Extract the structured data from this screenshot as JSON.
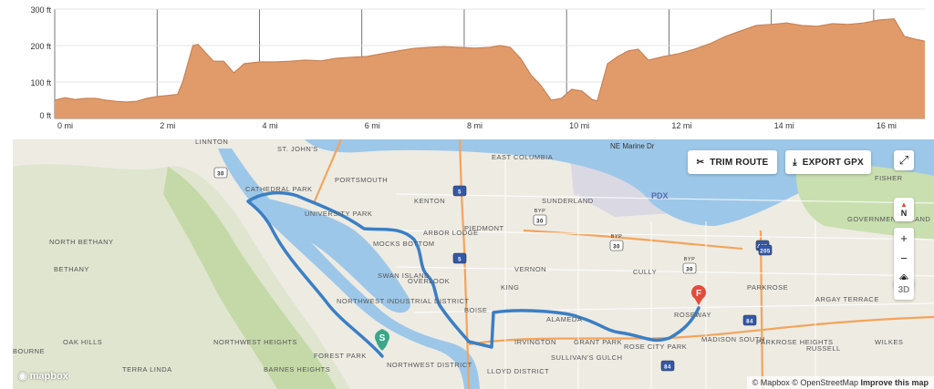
{
  "elevation": {
    "y_ticks": [
      "300 ft",
      "200 ft",
      "100 ft",
      "0 ft"
    ],
    "x_ticks": [
      "0 mi",
      "2 mi",
      "4 mi",
      "6 mi",
      "8 mi",
      "10 mi",
      "12 mi",
      "14 mi",
      "16 mi"
    ],
    "fill_color": "#e19b6b",
    "line_color": "#c98254"
  },
  "chart_data": {
    "type": "area",
    "xlabel": "",
    "ylabel": "",
    "xlim": [
      0,
      17
    ],
    "ylim": [
      0,
      300
    ],
    "x": [
      0,
      0.2,
      0.4,
      0.6,
      0.8,
      1.0,
      1.2,
      1.4,
      1.6,
      1.8,
      2.0,
      2.2,
      2.4,
      2.5,
      2.7,
      2.8,
      3.1,
      3.3,
      3.5,
      3.7,
      4.0,
      4.3,
      4.6,
      4.9,
      5.2,
      5.5,
      5.8,
      6.1,
      6.4,
      6.7,
      7.0,
      7.3,
      7.6,
      7.9,
      8.2,
      8.5,
      8.7,
      8.9,
      9.1,
      9.3,
      9.5,
      9.7,
      9.9,
      10.1,
      10.3,
      10.5,
      10.6,
      10.8,
      11.0,
      11.2,
      11.4,
      11.6,
      11.9,
      12.2,
      12.5,
      12.8,
      13.1,
      13.4,
      13.7,
      14.0,
      14.3,
      14.6,
      14.9,
      15.2,
      15.5,
      15.8,
      16.1,
      16.4,
      16.6,
      16.8,
      17.0
    ],
    "y": [
      50,
      57,
      52,
      55,
      55,
      50,
      47,
      45,
      47,
      55,
      60,
      63,
      66,
      100,
      200,
      203,
      157,
      157,
      125,
      150,
      155,
      155,
      157,
      160,
      158,
      165,
      168,
      170,
      178,
      185,
      192,
      195,
      197,
      195,
      193,
      195,
      200,
      195,
      165,
      120,
      90,
      50,
      55,
      80,
      75,
      52,
      48,
      150,
      170,
      185,
      190,
      160,
      170,
      178,
      190,
      205,
      225,
      240,
      255,
      258,
      262,
      255,
      253,
      260,
      258,
      262,
      270,
      273,
      225,
      218,
      212
    ],
    "series": [
      {
        "values": [
          50,
          57,
          52,
          55,
          55,
          50,
          47,
          45,
          47,
          55,
          60,
          63,
          66,
          100,
          200,
          203,
          157,
          157,
          125,
          150,
          155,
          155,
          157,
          160,
          158,
          165,
          168,
          170,
          178,
          185,
          192,
          195,
          197,
          195,
          193,
          195,
          200,
          195,
          165,
          120,
          90,
          50,
          55,
          80,
          75,
          52,
          48,
          150,
          170,
          185,
          190,
          160,
          170,
          178,
          190,
          205,
          225,
          240,
          255,
          258,
          262,
          255,
          253,
          260,
          258,
          262,
          270,
          273,
          225,
          218,
          212
        ]
      }
    ],
    "grid": true
  },
  "map": {
    "toolbar": {
      "trim_label": "TRIM ROUTE",
      "export_label": "EXPORT GPX"
    },
    "controls": {
      "compass_label": "N",
      "zoom_in": "+",
      "zoom_out": "−",
      "three_d": "3D"
    },
    "markers": {
      "start": "S",
      "finish": "F"
    },
    "attribution": {
      "mapbox": "© Mapbox",
      "osm": "© OpenStreetMap",
      "improve": "Improve this map"
    },
    "logo": "mapbox",
    "airport_code": "PDX",
    "shields": [
      "30",
      "5",
      "30",
      "30",
      "5",
      "30",
      "405",
      "84",
      "84",
      "205"
    ],
    "shield_byp": "BYP",
    "street_label": "NE Marine Dr",
    "route_color": "#3b7fc4",
    "water_color": "#9dc7e8",
    "park_color": "#c9dfb0",
    "places": [
      "LINNTON",
      "ST. JOHN'S",
      "CATHEDRAL PARK",
      "PORTSMOUTH",
      "EAST COLUMBIA",
      "KENTON",
      "SUNDERLAND",
      "UNIVERSITY PARK",
      "ARBOR LODGE",
      "PIEDMONT",
      "MOCKS BOTTOM",
      "SWAN ISLAND",
      "OVERLOOK",
      "VERNON",
      "CULLY",
      "PARKROSE",
      "ARGAY TERRACE",
      "NORTHWEST INDUSTRIAL DISTRICT",
      "BOISE",
      "KING",
      "ALAMEDA",
      "ROSEWAY",
      "NORTHWEST HEIGHTS",
      "FOREST PARK",
      "IRVINGTON",
      "GRANT PARK",
      "ROSE CITY PARK",
      "MADISON SOUTH",
      "PARKROSE HEIGHTS",
      "RUSSELL",
      "WILKES",
      "BETHANY",
      "NORTH BETHANY",
      "OAK HILLS",
      "BOURNE",
      "TERRA LINDA",
      "BARNES HEIGHTS",
      "NORTHWEST DISTRICT",
      "LLOYD DISTRICT",
      "SULLIVAN'S GULCH",
      "GOVERNMENT ISLAND",
      "FISHER"
    ]
  }
}
